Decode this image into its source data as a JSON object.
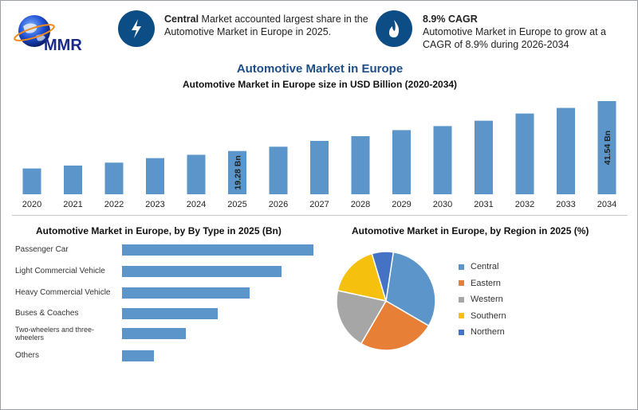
{
  "brand": {
    "logo_text": "MMR"
  },
  "highlights": [
    {
      "icon": "lightning-icon",
      "bold": "Central",
      "text": " Market accounted largest share in the Automotive Market in Europe in 2025."
    },
    {
      "icon": "flame-icon",
      "bold": "8.9% CAGR",
      "text": "Automotive Market in Europe to grow at a CAGR of 8.9% during 2026-2034"
    }
  ],
  "colors": {
    "bar": "#5b95c9",
    "accent": "#0d4d86",
    "title": "#1d4e89"
  },
  "chart_data": [
    {
      "type": "bar",
      "title": "Automotive Market in Europe",
      "subtitle": "Automotive Market in Europe size in USD Billion (2020-2034)",
      "categories": [
        "2020",
        "2021",
        "2022",
        "2023",
        "2024",
        "2025",
        "2026",
        "2027",
        "2028",
        "2029",
        "2030",
        "2031",
        "2032",
        "2033",
        "2034"
      ],
      "values": [
        11.5,
        12.8,
        14.1,
        16.1,
        17.6,
        19.28,
        21.2,
        23.8,
        25.9,
        28.6,
        30.4,
        32.8,
        36.0,
        38.5,
        41.54
      ],
      "data_labels": [
        {
          "index": 5,
          "text": "19.28 Bn"
        },
        {
          "index": 14,
          "text": "41.54 Bn"
        }
      ],
      "ylim": [
        0,
        45
      ]
    },
    {
      "type": "bar",
      "orientation": "horizontal",
      "title": "Automotive Market in Europe, by By Type in 2025 (Bn)",
      "categories": [
        "Passenger Car",
        "Light Commercial Vehicle",
        "Heavy Commercial Vehicle",
        "Buses & Coaches",
        "Two-wheelers and three-wheelers",
        "Others"
      ],
      "values": [
        6.0,
        5.0,
        4.0,
        3.0,
        2.0,
        1.0
      ],
      "xlim": [
        0,
        6.2
      ]
    },
    {
      "type": "pie",
      "title": "Automotive Market in Europe, by Region in 2025 (%)",
      "labels": [
        "Central",
        "Eastern",
        "Western",
        "Southern",
        "Northern"
      ],
      "values": [
        31,
        25,
        20,
        17,
        7
      ],
      "colors": [
        "#5b95c9",
        "#e87f36",
        "#a6a6a6",
        "#f5c10e",
        "#4472c4"
      ],
      "legend_position": "right"
    }
  ]
}
